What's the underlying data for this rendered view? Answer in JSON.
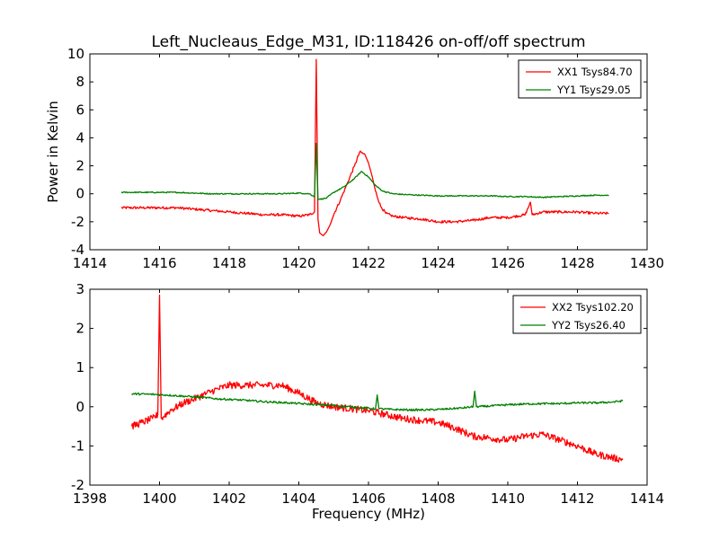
{
  "figure": {
    "title": "Left_Nucleaus_Edge_M31, ID:118426 on-off/off spectrum"
  },
  "chart_data": [
    {
      "type": "line",
      "title": "Left_Nucleaus_Edge_M31, ID:118426 on-off/off spectrum",
      "xlabel": "",
      "ylabel": "Power in Kelvin",
      "xlim": [
        1414,
        1430
      ],
      "ylim": [
        -4,
        10
      ],
      "xticks": [
        1414,
        1416,
        1418,
        1420,
        1422,
        1424,
        1426,
        1428,
        1430
      ],
      "yticks": [
        -4,
        -2,
        0,
        2,
        4,
        6,
        8,
        10
      ],
      "grid": false,
      "legend": "top-right",
      "series": [
        {
          "name": "XX1 Tsys84.70",
          "color": "#ff0000",
          "x": [
            1414.9,
            1415.5,
            1416.0,
            1416.5,
            1417.0,
            1417.5,
            1418.0,
            1418.5,
            1419.0,
            1419.5,
            1420.0,
            1420.3,
            1420.45,
            1420.5,
            1420.55,
            1420.6,
            1420.7,
            1420.8,
            1420.9,
            1421.0,
            1421.2,
            1421.4,
            1421.6,
            1421.75,
            1421.9,
            1422.0,
            1422.1,
            1422.2,
            1422.35,
            1422.5,
            1422.7,
            1423.0,
            1423.5,
            1424.0,
            1424.5,
            1425.0,
            1425.5,
            1426.0,
            1426.5,
            1426.65,
            1426.7,
            1427.0,
            1427.5,
            1428.0,
            1428.5,
            1428.9
          ],
          "y": [
            -1.0,
            -1.0,
            -1.0,
            -1.0,
            -1.1,
            -1.2,
            -1.3,
            -1.4,
            -1.5,
            -1.5,
            -1.6,
            -1.5,
            -1.3,
            9.6,
            -1.8,
            -2.8,
            -3.0,
            -2.7,
            -2.2,
            -1.5,
            -0.4,
            0.8,
            2.0,
            3.0,
            2.8,
            2.2,
            1.3,
            0.2,
            -0.9,
            -1.4,
            -1.6,
            -1.7,
            -1.8,
            -2.0,
            -2.0,
            -1.9,
            -1.7,
            -1.7,
            -1.5,
            -0.6,
            -1.5,
            -1.3,
            -1.3,
            -1.3,
            -1.4,
            -1.4
          ]
        },
        {
          "name": "YY1 Tsys29.05",
          "color": "#008000",
          "x": [
            1414.9,
            1415.5,
            1416.0,
            1416.5,
            1417.0,
            1417.5,
            1418.0,
            1418.5,
            1419.0,
            1419.5,
            1420.0,
            1420.3,
            1420.45,
            1420.5,
            1420.55,
            1420.6,
            1420.8,
            1421.0,
            1421.3,
            1421.6,
            1421.8,
            1422.0,
            1422.2,
            1422.4,
            1422.7,
            1423.0,
            1423.5,
            1424.0,
            1424.5,
            1425.0,
            1425.5,
            1426.0,
            1426.5,
            1427.0,
            1427.5,
            1428.0,
            1428.5,
            1428.9
          ],
          "y": [
            0.1,
            0.1,
            0.1,
            0.1,
            0.05,
            0.0,
            0.0,
            0.0,
            0.0,
            0.0,
            0.05,
            0.0,
            -0.2,
            3.6,
            -0.4,
            -0.4,
            -0.3,
            0.1,
            0.5,
            1.1,
            1.6,
            1.2,
            0.6,
            0.2,
            0.0,
            -0.05,
            -0.1,
            -0.15,
            -0.15,
            -0.15,
            -0.15,
            -0.2,
            -0.2,
            -0.25,
            -0.2,
            -0.15,
            -0.1,
            -0.1
          ]
        }
      ]
    },
    {
      "type": "line",
      "title": "",
      "xlabel": "Frequency (MHz)",
      "ylabel": "",
      "xlim": [
        1398,
        1414
      ],
      "ylim": [
        -2,
        3
      ],
      "xticks": [
        1398,
        1400,
        1402,
        1404,
        1406,
        1408,
        1410,
        1412,
        1414
      ],
      "yticks": [
        -2,
        -1,
        0,
        1,
        2,
        3
      ],
      "grid": false,
      "legend": "top-right",
      "series": [
        {
          "name": "XX2 Tsys102.20",
          "color": "#ff0000",
          "x": [
            1399.2,
            1399.5,
            1399.8,
            1399.95,
            1400.0,
            1400.05,
            1400.3,
            1400.7,
            1401.0,
            1401.5,
            1402.0,
            1402.5,
            1403.0,
            1403.5,
            1404.0,
            1404.5,
            1405.0,
            1405.5,
            1406.0,
            1406.5,
            1407.0,
            1407.5,
            1408.0,
            1408.5,
            1409.0,
            1409.5,
            1410.0,
            1410.5,
            1411.0,
            1411.5,
            1412.0,
            1412.5,
            1413.0,
            1413.3
          ],
          "y": [
            -0.5,
            -0.4,
            -0.3,
            -0.2,
            2.85,
            -0.3,
            -0.1,
            0.1,
            0.2,
            0.4,
            0.55,
            0.55,
            0.55,
            0.55,
            0.35,
            0.1,
            0.0,
            -0.05,
            -0.1,
            -0.2,
            -0.3,
            -0.35,
            -0.4,
            -0.55,
            -0.75,
            -0.8,
            -0.85,
            -0.75,
            -0.7,
            -0.85,
            -1.0,
            -1.2,
            -1.3,
            -1.35
          ]
        },
        {
          "name": "YY2 Tsys26.40",
          "color": "#008000",
          "x": [
            1399.2,
            1399.7,
            1400.2,
            1400.7,
            1401.2,
            1401.7,
            1402.2,
            1402.7,
            1403.2,
            1403.7,
            1404.2,
            1404.7,
            1405.2,
            1405.7,
            1406.2,
            1406.25,
            1406.3,
            1406.7,
            1407.2,
            1407.7,
            1408.2,
            1408.7,
            1409.0,
            1409.05,
            1409.1,
            1409.5,
            1410.0,
            1410.5,
            1411.0,
            1411.5,
            1412.0,
            1412.5,
            1413.0,
            1413.3
          ],
          "y": [
            0.33,
            0.32,
            0.3,
            0.27,
            0.24,
            0.2,
            0.18,
            0.15,
            0.12,
            0.1,
            0.07,
            0.05,
            0.02,
            -0.02,
            -0.05,
            0.3,
            -0.05,
            -0.07,
            -0.08,
            -0.08,
            -0.06,
            -0.03,
            0.0,
            0.4,
            0.0,
            0.02,
            0.05,
            0.07,
            0.08,
            0.08,
            0.1,
            0.1,
            0.12,
            0.15
          ]
        }
      ]
    }
  ]
}
